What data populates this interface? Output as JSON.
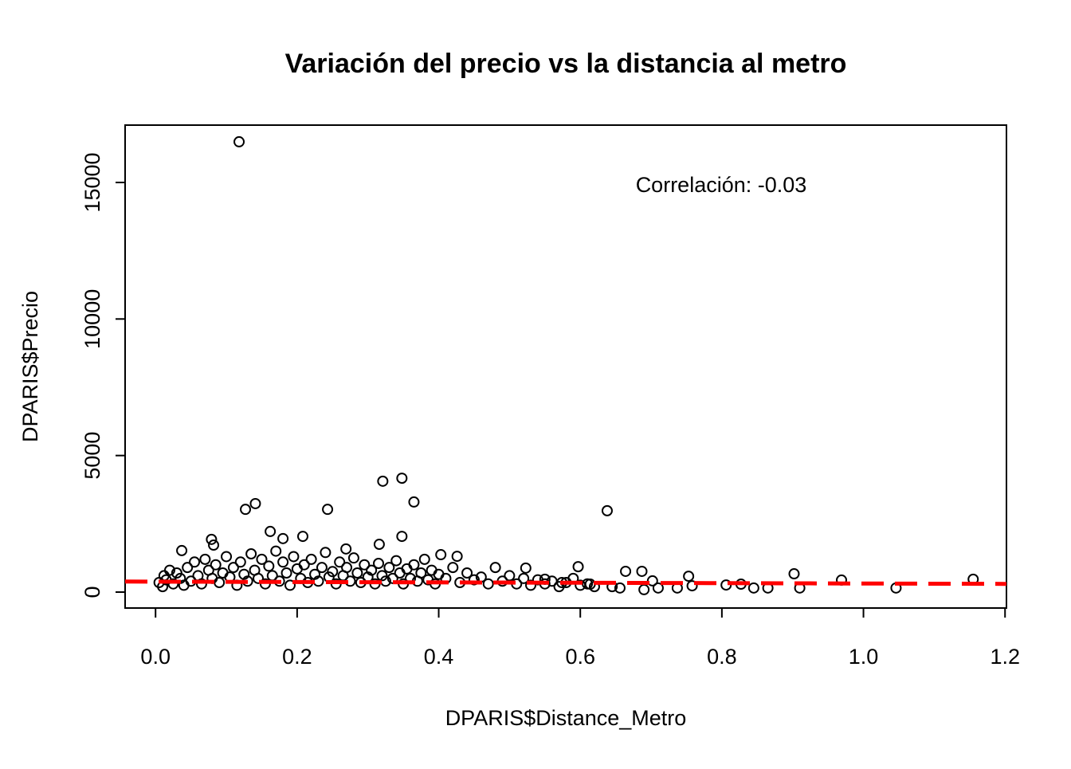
{
  "chart_data": {
    "type": "scatter",
    "title": "Variación del precio vs la distancia al metro",
    "x_label": "DPARIS$Distance_Metro",
    "y_label": "DPARIS$Precio",
    "annotation": "Correlación: -0.03",
    "xlim": [
      -0.043,
      1.202
    ],
    "ylim": [
      -584,
      17100
    ],
    "xticks": [
      {
        "value": 0,
        "label": "0.0"
      },
      0.2,
      0.4,
      0.6,
      0.8,
      {
        "value": 1,
        "label": "1.0"
      },
      1.2
    ],
    "yticks": [
      0,
      5000,
      10000,
      15000
    ],
    "series": [
      {
        "color": "#000000",
        "x": [
          0.118,
          0.348,
          0.321,
          0.141,
          0.127,
          0.243,
          0.365,
          0.638,
          0.348,
          0.162,
          0.208,
          0.079,
          0.18,
          0.037,
          0.082,
          0.316,
          0.269,
          0.426,
          0.403,
          0.597,
          0.523,
          0.664,
          0.687,
          0.753,
          0.902,
          0.969,
          1.155,
          1.046,
          0.91,
          0.865,
          0.845,
          0.806,
          0.827,
          0.758,
          0.737,
          0.71,
          0.702,
          0.69,
          0.656,
          0.645,
          0.614,
          0.574,
          0.55,
          0.005,
          0.01,
          0.012,
          0.015,
          0.02,
          0.025,
          0.03,
          0.035,
          0.04,
          0.045,
          0.05,
          0.055,
          0.06,
          0.065,
          0.07,
          0.075,
          0.08,
          0.085,
          0.09,
          0.095,
          0.1,
          0.105,
          0.11,
          0.115,
          0.12,
          0.125,
          0.13,
          0.135,
          0.14,
          0.145,
          0.15,
          0.155,
          0.16,
          0.165,
          0.17,
          0.175,
          0.18,
          0.185,
          0.19,
          0.195,
          0.2,
          0.205,
          0.21,
          0.215,
          0.22,
          0.225,
          0.23,
          0.235,
          0.24,
          0.245,
          0.25,
          0.255,
          0.26,
          0.265,
          0.27,
          0.275,
          0.28,
          0.285,
          0.29,
          0.295,
          0.3,
          0.305,
          0.31,
          0.315,
          0.32,
          0.325,
          0.33,
          0.335,
          0.34,
          0.345,
          0.35,
          0.355,
          0.36,
          0.365,
          0.37,
          0.375,
          0.38,
          0.385,
          0.39,
          0.395,
          0.4,
          0.41,
          0.42,
          0.43,
          0.44,
          0.45,
          0.46,
          0.47,
          0.48,
          0.49,
          0.5,
          0.51,
          0.52,
          0.53,
          0.54,
          0.55,
          0.56,
          0.57,
          0.58,
          0.59,
          0.6,
          0.61,
          0.62
        ],
        "values": [
          16490,
          4170,
          4060,
          3240,
          3030,
          3030,
          3300,
          2980,
          2040,
          2220,
          2040,
          1930,
          1960,
          1520,
          1720,
          1750,
          1580,
          1310,
          1370,
          930,
          880,
          760,
          760,
          580,
          670,
          440,
          470,
          150,
          150,
          150,
          150,
          260,
          290,
          230,
          150,
          150,
          410,
          90,
          150,
          200,
          290,
          350,
          470,
          350,
          200,
          600,
          450,
          800,
          300,
          700,
          500,
          250,
          900,
          400,
          1100,
          600,
          300,
          1200,
          800,
          500,
          1000,
          350,
          700,
          1300,
          550,
          900,
          250,
          1100,
          650,
          400,
          1400,
          800,
          500,
          1200,
          300,
          950,
          600,
          1500,
          400,
          1100,
          700,
          250,
          1300,
          850,
          500,
          1000,
          350,
          1200,
          650,
          400,
          900,
          1450,
          550,
          750,
          300,
          1100,
          600,
          900,
          400,
          1250,
          700,
          350,
          1000,
          550,
          800,
          300,
          1050,
          600,
          400,
          900,
          500,
          1150,
          700,
          300,
          850,
          500,
          1000,
          400,
          700,
          1200,
          450,
          800,
          300,
          650,
          500,
          900,
          350,
          700,
          450,
          550,
          300,
          900,
          400,
          600,
          300,
          500,
          250,
          450,
          300,
          400,
          200,
          350,
          500,
          250,
          300,
          200
        ]
      }
    ],
    "regression_line": {
      "color": "#ff0000",
      "x": [
        -0.043,
        1.202
      ],
      "values": [
        385,
        300
      ]
    }
  }
}
